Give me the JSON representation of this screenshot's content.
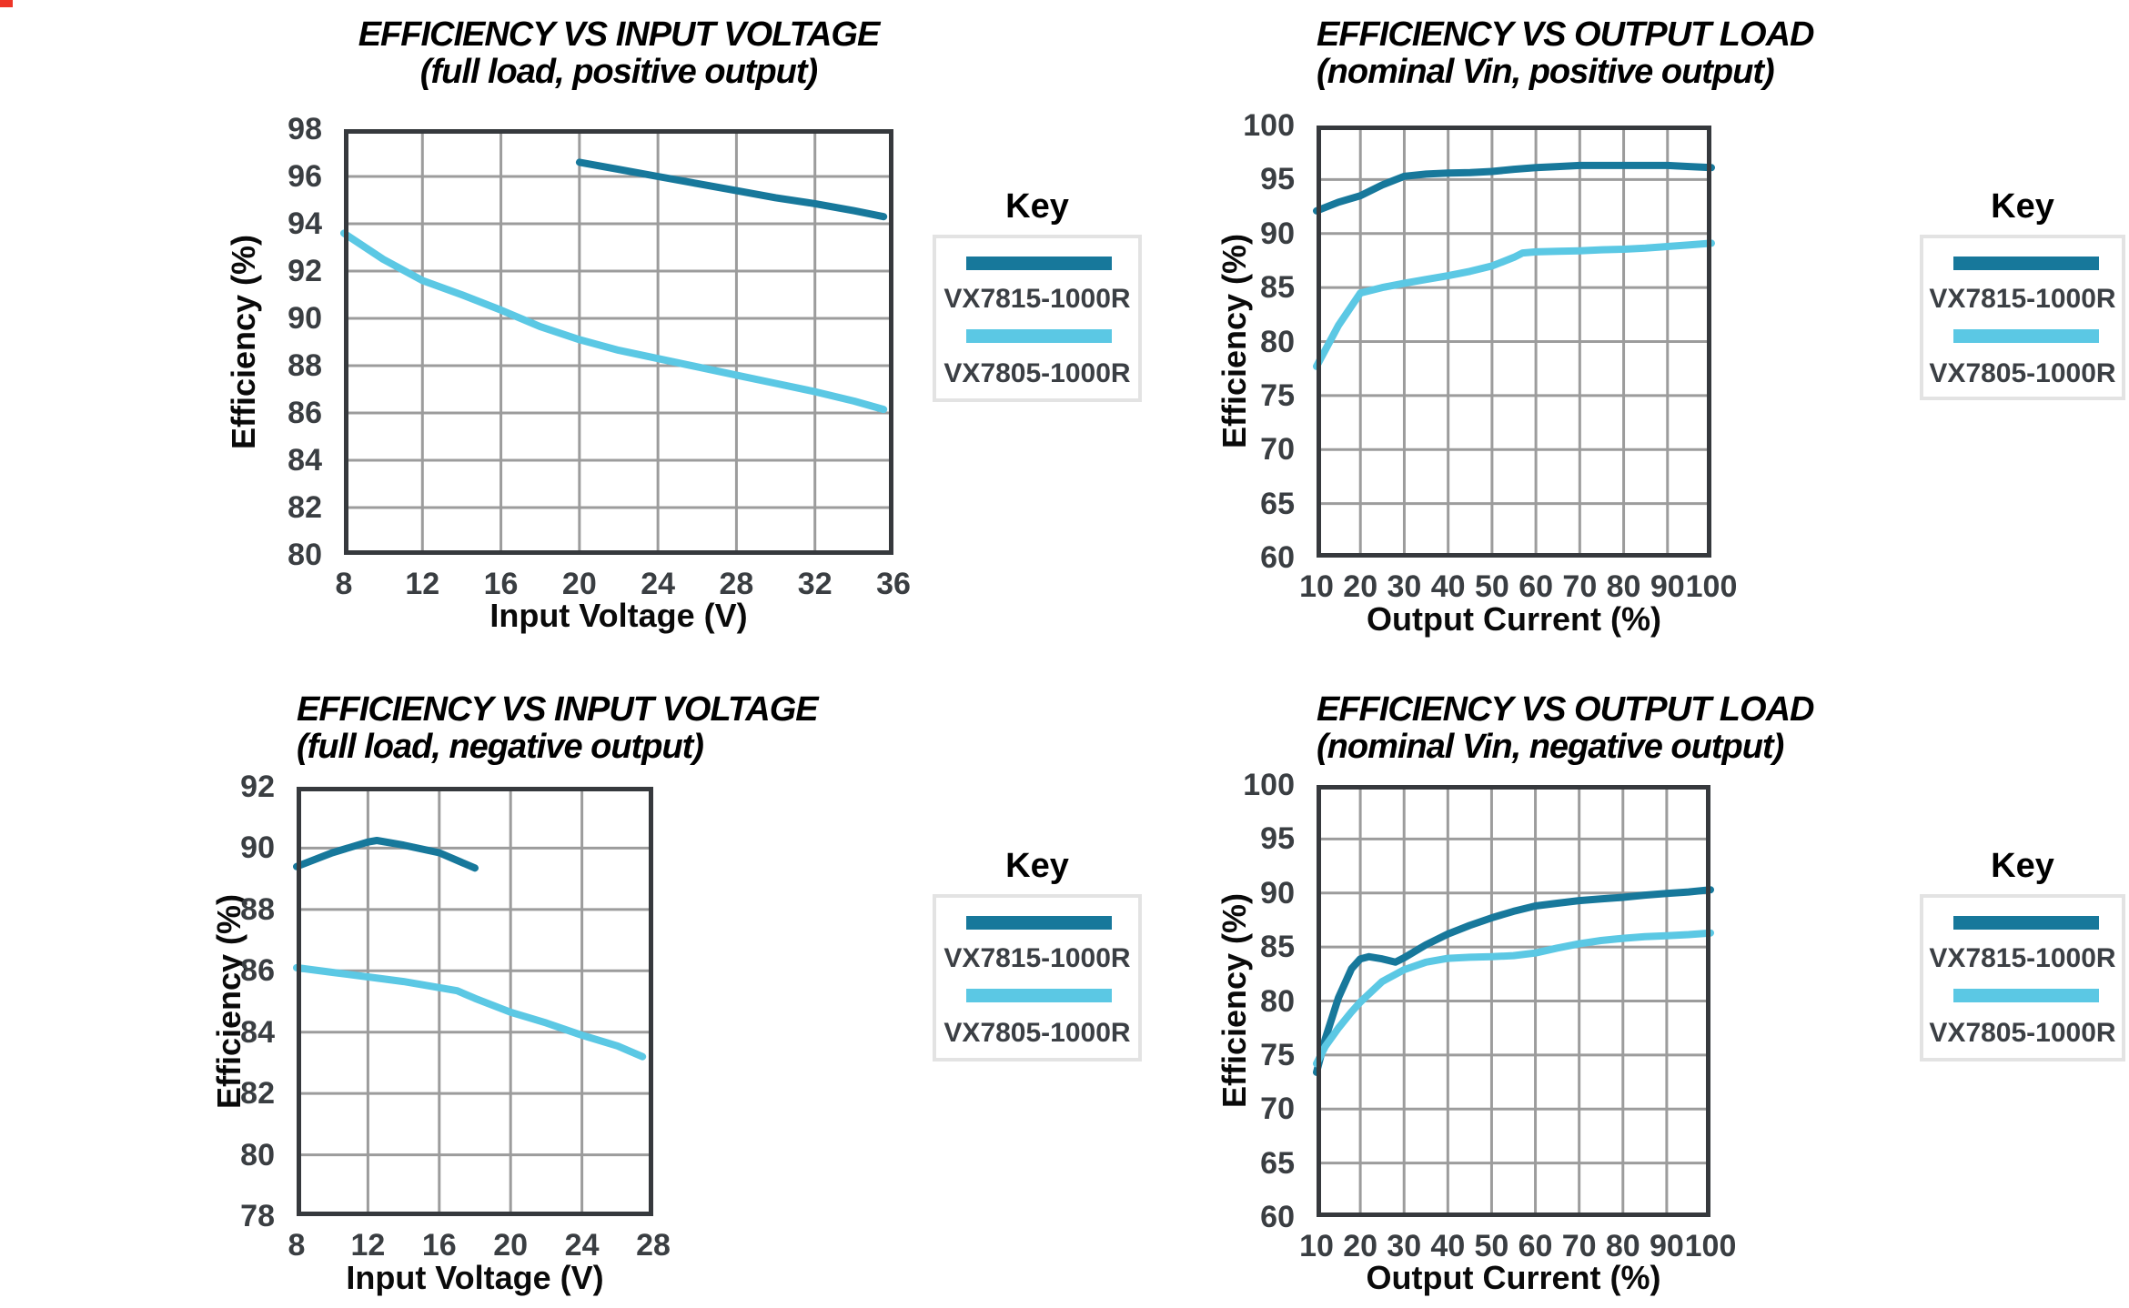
{
  "page": {
    "corner_mark_color": "#ee3527"
  },
  "colors": {
    "series_dark": "#17789b",
    "series_light": "#5bc8e4",
    "grid": "#9c9c9c",
    "axis_frame": "#36393d",
    "tick_text": "#3a3e42",
    "legend_border": "#e3e3e3"
  },
  "legend": {
    "title": "Key",
    "items": [
      {
        "label": "VX7815-1000R",
        "color": "#17789b"
      },
      {
        "label": "VX7805-1000R",
        "color": "#5bc8e4"
      }
    ]
  },
  "chart_data": [
    {
      "type": "line",
      "title_line1": "EFFICIENCY VS INPUT VOLTAGE",
      "title_line2": "(full load, positive output)",
      "xlabel": "Input Voltage (V)",
      "ylabel": "Efficiency (%)",
      "xlim": [
        8,
        36
      ],
      "ylim": [
        80,
        98
      ],
      "xticks": [
        8,
        12,
        16,
        20,
        24,
        28,
        32,
        36
      ],
      "yticks": [
        80,
        82,
        84,
        86,
        88,
        90,
        92,
        94,
        96,
        98
      ],
      "grid": "on",
      "legend_position": "right",
      "series": [
        {
          "name": "VX7815-1000R",
          "values": [
            [
              20,
              96.6
            ],
            [
              22,
              96.3
            ],
            [
              24,
              96.0
            ],
            [
              26,
              95.7
            ],
            [
              28,
              95.4
            ],
            [
              30,
              95.1
            ],
            [
              32,
              94.85
            ],
            [
              34,
              94.55
            ],
            [
              35.5,
              94.3
            ]
          ]
        },
        {
          "name": "VX7805-1000R",
          "values": [
            [
              8,
              93.6
            ],
            [
              10,
              92.5
            ],
            [
              12,
              91.6
            ],
            [
              14,
              91.0
            ],
            [
              16,
              90.35
            ],
            [
              18,
              89.65
            ],
            [
              20,
              89.1
            ],
            [
              22,
              88.65
            ],
            [
              24,
              88.3
            ],
            [
              26,
              87.95
            ],
            [
              28,
              87.6
            ],
            [
              30,
              87.25
            ],
            [
              32,
              86.9
            ],
            [
              34,
              86.5
            ],
            [
              35.5,
              86.15
            ]
          ]
        }
      ]
    },
    {
      "type": "line",
      "title_line1": "EFFICIENCY VS OUTPUT LOAD",
      "title_line2": "(nominal Vin, positive output)",
      "xlabel": "Output Current (%)",
      "ylabel": "Efficiency (%)",
      "xlim": [
        10,
        100
      ],
      "ylim": [
        60,
        100
      ],
      "xticks": [
        10,
        20,
        30,
        40,
        50,
        60,
        70,
        80,
        90,
        100
      ],
      "yticks": [
        60,
        65,
        70,
        75,
        80,
        85,
        90,
        95,
        100
      ],
      "grid": "on",
      "legend_position": "right",
      "series": [
        {
          "name": "VX7815-1000R",
          "values": [
            [
              10,
              92.1
            ],
            [
              15,
              92.9
            ],
            [
              20,
              93.5
            ],
            [
              25,
              94.5
            ],
            [
              30,
              95.3
            ],
            [
              35,
              95.5
            ],
            [
              40,
              95.6
            ],
            [
              45,
              95.65
            ],
            [
              50,
              95.75
            ],
            [
              55,
              95.95
            ],
            [
              60,
              96.1
            ],
            [
              65,
              96.2
            ],
            [
              70,
              96.3
            ],
            [
              75,
              96.3
            ],
            [
              80,
              96.3
            ],
            [
              85,
              96.3
            ],
            [
              90,
              96.3
            ],
            [
              95,
              96.2
            ],
            [
              100,
              96.1
            ]
          ]
        },
        {
          "name": "VX7805-1000R",
          "values": [
            [
              10,
              77.7
            ],
            [
              15,
              81.5
            ],
            [
              20,
              84.5
            ],
            [
              25,
              85.0
            ],
            [
              30,
              85.4
            ],
            [
              35,
              85.75
            ],
            [
              40,
              86.1
            ],
            [
              45,
              86.5
            ],
            [
              50,
              87.0
            ],
            [
              55,
              87.8
            ],
            [
              57,
              88.2
            ],
            [
              60,
              88.3
            ],
            [
              65,
              88.35
            ],
            [
              70,
              88.4
            ],
            [
              75,
              88.5
            ],
            [
              80,
              88.55
            ],
            [
              85,
              88.65
            ],
            [
              90,
              88.8
            ],
            [
              95,
              88.95
            ],
            [
              100,
              89.1
            ]
          ]
        }
      ]
    },
    {
      "type": "line",
      "title_line1": "EFFICIENCY VS INPUT VOLTAGE",
      "title_line2": "(full load, negative output)",
      "xlabel": "Input Voltage (V)",
      "ylabel": "Efficiency (%)",
      "xlim": [
        8,
        28
      ],
      "ylim": [
        78,
        92
      ],
      "xticks": [
        8,
        12,
        16,
        20,
        24,
        28
      ],
      "yticks": [
        78,
        80,
        82,
        84,
        86,
        88,
        90,
        92
      ],
      "grid": "on",
      "legend_position": "right",
      "series": [
        {
          "name": "VX7815-1000R",
          "values": [
            [
              8,
              89.4
            ],
            [
              10,
              89.85
            ],
            [
              12,
              90.2
            ],
            [
              12.5,
              90.25
            ],
            [
              14,
              90.1
            ],
            [
              16,
              89.85
            ],
            [
              18,
              89.35
            ]
          ]
        },
        {
          "name": "VX7805-1000R",
          "values": [
            [
              8,
              86.1
            ],
            [
              10,
              85.95
            ],
            [
              12,
              85.8
            ],
            [
              14,
              85.65
            ],
            [
              16,
              85.45
            ],
            [
              17,
              85.35
            ],
            [
              18,
              85.1
            ],
            [
              20,
              84.65
            ],
            [
              22,
              84.3
            ],
            [
              24,
              83.9
            ],
            [
              26,
              83.55
            ],
            [
              27.4,
              83.2
            ]
          ]
        }
      ]
    },
    {
      "type": "line",
      "title_line1": "EFFICIENCY VS OUTPUT LOAD",
      "title_line2": "(nominal Vin, negative output)",
      "xlabel": "Output Current (%)",
      "ylabel": "Efficiency (%)",
      "xlim": [
        10,
        100
      ],
      "ylim": [
        60,
        100
      ],
      "xticks": [
        10,
        20,
        30,
        40,
        50,
        60,
        70,
        80,
        90,
        100
      ],
      "yticks": [
        60,
        65,
        70,
        75,
        80,
        85,
        90,
        95,
        100
      ],
      "grid": "on",
      "legend_position": "right",
      "series": [
        {
          "name": "VX7815-1000R",
          "values": [
            [
              10,
              73.4
            ],
            [
              12,
              76.5
            ],
            [
              15,
              80.3
            ],
            [
              18,
              83.0
            ],
            [
              20,
              83.9
            ],
            [
              22,
              84.1
            ],
            [
              25,
              83.9
            ],
            [
              28,
              83.6
            ],
            [
              30,
              84.0
            ],
            [
              35,
              85.2
            ],
            [
              40,
              86.2
            ],
            [
              45,
              87.0
            ],
            [
              50,
              87.7
            ],
            [
              55,
              88.3
            ],
            [
              60,
              88.8
            ],
            [
              65,
              89.05
            ],
            [
              70,
              89.3
            ],
            [
              75,
              89.45
            ],
            [
              80,
              89.6
            ],
            [
              85,
              89.8
            ],
            [
              90,
              89.95
            ],
            [
              95,
              90.1
            ],
            [
              100,
              90.3
            ]
          ]
        },
        {
          "name": "VX7805-1000R",
          "values": [
            [
              10,
              74.2
            ],
            [
              12,
              75.8
            ],
            [
              15,
              77.5
            ],
            [
              18,
              79.0
            ],
            [
              20,
              79.9
            ],
            [
              25,
              81.8
            ],
            [
              30,
              82.9
            ],
            [
              35,
              83.6
            ],
            [
              40,
              83.95
            ],
            [
              45,
              84.05
            ],
            [
              50,
              84.1
            ],
            [
              55,
              84.2
            ],
            [
              60,
              84.45
            ],
            [
              65,
              84.9
            ],
            [
              70,
              85.3
            ],
            [
              75,
              85.6
            ],
            [
              80,
              85.8
            ],
            [
              85,
              85.95
            ],
            [
              90,
              86.05
            ],
            [
              95,
              86.15
            ],
            [
              100,
              86.3
            ]
          ]
        }
      ]
    }
  ]
}
